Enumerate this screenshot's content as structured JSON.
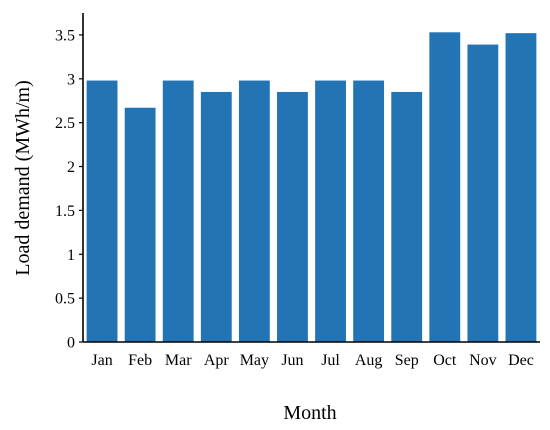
{
  "chart_data": {
    "type": "bar",
    "categories": [
      "Jan",
      "Feb",
      "Mar",
      "Apr",
      "May",
      "Jun",
      "Jul",
      "Aug",
      "Sep",
      "Oct",
      "Nov",
      "Dec"
    ],
    "values": [
      2.98,
      2.67,
      2.98,
      2.85,
      2.98,
      2.85,
      2.98,
      2.98,
      2.85,
      3.53,
      3.39,
      3.52
    ],
    "title": "",
    "xlabel": "Month",
    "ylabel": "Load demand (MWh/m)",
    "ylim": [
      0,
      3.75
    ],
    "yticks": [
      0,
      0.5,
      1,
      1.5,
      2,
      2.5,
      3,
      3.5
    ],
    "ytick_labels": [
      "0",
      "0.5",
      "1",
      "1.5",
      "2",
      "2.5",
      "3",
      "3.5"
    ],
    "grid": false,
    "legend": "none",
    "bar_color": "#2274b4"
  }
}
